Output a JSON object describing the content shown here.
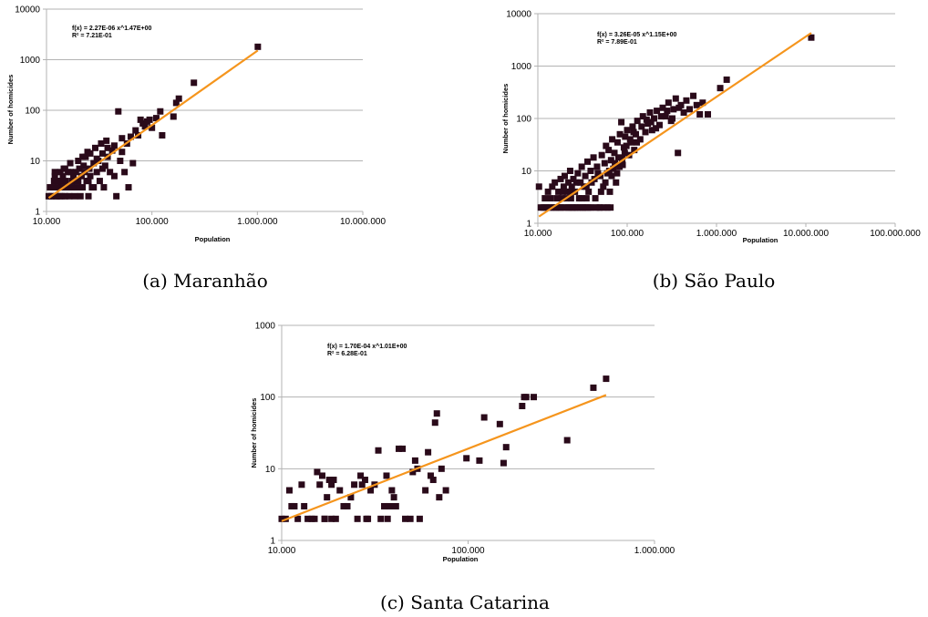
{
  "colors": {
    "marker": "#2a0a1a",
    "fit_line": "#f5951d",
    "grid": "#b3b3b3",
    "axis": "#b3b3b3"
  },
  "chart_data": [
    {
      "type": "scatter",
      "log_x": true,
      "log_y": true,
      "xlabel": "Population",
      "ylabel": "Number of homicides",
      "xlim": [
        10000,
        10000000
      ],
      "ylim": [
        1,
        10000
      ],
      "x_ticks": [
        "10.000",
        "100.000",
        "1.000.000",
        "10.000.000"
      ],
      "y_ticks": [
        "1",
        "10",
        "100",
        "1000",
        "10000"
      ],
      "grid": "horizontal",
      "equation": "f(x) = 2.27E-06 x^1.47E+00",
      "r2": "R² = 7.21E-01",
      "fit": {
        "a": 2.27e-06,
        "b": 1.47,
        "x_range": [
          10500,
          1010000
        ]
      },
      "caption": "(a)  Maranhão",
      "points": [
        [
          10500,
          2
        ],
        [
          10800,
          3
        ],
        [
          11000,
          2
        ],
        [
          11200,
          2
        ],
        [
          11500,
          3
        ],
        [
          11800,
          4
        ],
        [
          12000,
          5
        ],
        [
          12300,
          2
        ],
        [
          12500,
          2
        ],
        [
          12800,
          3
        ],
        [
          13000,
          4
        ],
        [
          13300,
          2
        ],
        [
          13500,
          6
        ],
        [
          13800,
          3
        ],
        [
          14000,
          2
        ],
        [
          14300,
          5
        ],
        [
          14600,
          7
        ],
        [
          15000,
          2
        ],
        [
          15300,
          4
        ],
        [
          15600,
          3
        ],
        [
          16000,
          6
        ],
        [
          16400,
          2
        ],
        [
          16800,
          9
        ],
        [
          17200,
          3
        ],
        [
          17600,
          4
        ],
        [
          18000,
          5
        ],
        [
          18500,
          2
        ],
        [
          19000,
          6
        ],
        [
          19500,
          3
        ],
        [
          20000,
          4
        ],
        [
          20500,
          7
        ],
        [
          21000,
          2
        ],
        [
          21500,
          5
        ],
        [
          22000,
          3
        ],
        [
          22500,
          8
        ],
        [
          23000,
          6
        ],
        [
          23500,
          12
        ],
        [
          24000,
          4
        ],
        [
          24500,
          15
        ],
        [
          25000,
          2
        ],
        [
          25500,
          7
        ],
        [
          26000,
          5
        ],
        [
          27000,
          3
        ],
        [
          28000,
          9
        ],
        [
          29000,
          18
        ],
        [
          30000,
          6
        ],
        [
          31000,
          10
        ],
        [
          32000,
          4
        ],
        [
          33000,
          22
        ],
        [
          34000,
          14
        ],
        [
          35000,
          3
        ],
        [
          36000,
          8
        ],
        [
          37000,
          25
        ],
        [
          38000,
          12
        ],
        [
          40000,
          6
        ],
        [
          42000,
          16
        ],
        [
          44000,
          20
        ],
        [
          46000,
          2
        ],
        [
          48000,
          95
        ],
        [
          50000,
          10
        ],
        [
          52000,
          28
        ],
        [
          55000,
          6
        ],
        [
          58000,
          22
        ],
        [
          60000,
          3
        ],
        [
          63000,
          30
        ],
        [
          66000,
          9
        ],
        [
          70000,
          40
        ],
        [
          74000,
          32
        ],
        [
          78000,
          65
        ],
        [
          82000,
          55
        ],
        [
          86000,
          48
        ],
        [
          90000,
          60
        ],
        [
          95000,
          65
        ],
        [
          100000,
          45
        ],
        [
          110000,
          70
        ],
        [
          120000,
          95
        ],
        [
          125000,
          32
        ],
        [
          160000,
          75
        ],
        [
          170000,
          140
        ],
        [
          180000,
          170
        ],
        [
          250000,
          350
        ],
        [
          1010000,
          1800
        ],
        [
          12000,
          6
        ],
        [
          13500,
          4
        ],
        [
          15000,
          7
        ],
        [
          17000,
          6
        ],
        [
          20000,
          10
        ],
        [
          22000,
          12
        ],
        [
          26000,
          14
        ],
        [
          30000,
          11
        ],
        [
          34000,
          7
        ],
        [
          28000,
          3
        ],
        [
          25000,
          4
        ],
        [
          38000,
          18
        ],
        [
          44000,
          5
        ],
        [
          52000,
          15
        ]
      ]
    },
    {
      "type": "scatter",
      "log_x": true,
      "log_y": true,
      "xlabel": "Population",
      "ylabel": "Number of homicides",
      "xlim": [
        10000,
        100000000
      ],
      "ylim": [
        1,
        10000
      ],
      "x_ticks": [
        "10.000",
        "100.000",
        "1.000.000",
        "10.000.000",
        "100.000.000"
      ],
      "y_ticks": [
        "1",
        "10",
        "100",
        "1000",
        "10000"
      ],
      "grid": "horizontal",
      "equation": "f(x) = 3.26E-05 x^1.15E+00",
      "r2": "R² = 7.89E-01",
      "fit": {
        "a": 3.26e-05,
        "b": 1.15,
        "x_range": [
          10300,
          11500000
        ]
      },
      "caption": "(b)  São Paulo",
      "points": [
        [
          10300,
          5
        ],
        [
          10800,
          2
        ],
        [
          11500,
          2
        ],
        [
          12000,
          3
        ],
        [
          12500,
          2
        ],
        [
          13000,
          4
        ],
        [
          13500,
          2
        ],
        [
          14000,
          3
        ],
        [
          14500,
          5
        ],
        [
          15000,
          2
        ],
        [
          15500,
          6
        ],
        [
          16000,
          2
        ],
        [
          16500,
          3
        ],
        [
          17000,
          4
        ],
        [
          17500,
          2
        ],
        [
          18000,
          7
        ],
        [
          18500,
          3
        ],
        [
          19000,
          2
        ],
        [
          19500,
          5
        ],
        [
          20000,
          8
        ],
        [
          20500,
          2
        ],
        [
          21000,
          3
        ],
        [
          21500,
          4
        ],
        [
          22000,
          6
        ],
        [
          22500,
          2
        ],
        [
          23000,
          10
        ],
        [
          23500,
          3
        ],
        [
          24000,
          5
        ],
        [
          24500,
          2
        ],
        [
          25000,
          7
        ],
        [
          26000,
          4
        ],
        [
          27000,
          2
        ],
        [
          28000,
          9
        ],
        [
          29000,
          3
        ],
        [
          30000,
          6
        ],
        [
          31000,
          12
        ],
        [
          32000,
          2
        ],
        [
          33000,
          5
        ],
        [
          34000,
          8
        ],
        [
          35000,
          3
        ],
        [
          36000,
          15
        ],
        [
          37000,
          4
        ],
        [
          38000,
          2
        ],
        [
          39000,
          10
        ],
        [
          40000,
          6
        ],
        [
          42000,
          18
        ],
        [
          44000,
          3
        ],
        [
          46000,
          12
        ],
        [
          48000,
          2
        ],
        [
          50000,
          8
        ],
        [
          52000,
          20
        ],
        [
          54000,
          5
        ],
        [
          56000,
          14
        ],
        [
          58000,
          30
        ],
        [
          60000,
          9
        ],
        [
          62000,
          25
        ],
        [
          64000,
          4
        ],
        [
          66000,
          16
        ],
        [
          68000,
          40
        ],
        [
          70000,
          11
        ],
        [
          72000,
          22
        ],
        [
          75000,
          6
        ],
        [
          78000,
          35
        ],
        [
          80000,
          18
        ],
        [
          83000,
          50
        ],
        [
          86000,
          85
        ],
        [
          89000,
          13
        ],
        [
          92000,
          28
        ],
        [
          95000,
          45
        ],
        [
          100000,
          60
        ],
        [
          105000,
          20
        ],
        [
          110000,
          35
        ],
        [
          115000,
          70
        ],
        [
          120000,
          25
        ],
        [
          125000,
          50
        ],
        [
          130000,
          90
        ],
        [
          140000,
          40
        ],
        [
          150000,
          110
        ],
        [
          160000,
          55
        ],
        [
          170000,
          80
        ],
        [
          180000,
          130
        ],
        [
          190000,
          60
        ],
        [
          200000,
          100
        ],
        [
          215000,
          140
        ],
        [
          230000,
          75
        ],
        [
          250000,
          160
        ],
        [
          270000,
          110
        ],
        [
          290000,
          200
        ],
        [
          310000,
          90
        ],
        [
          330000,
          150
        ],
        [
          350000,
          240
        ],
        [
          370000,
          22
        ],
        [
          400000,
          180
        ],
        [
          430000,
          130
        ],
        [
          460000,
          220
        ],
        [
          500000,
          150
        ],
        [
          550000,
          270
        ],
        [
          600000,
          180
        ],
        [
          650000,
          120
        ],
        [
          700000,
          200
        ],
        [
          800000,
          120
        ],
        [
          1100000,
          380
        ],
        [
          1300000,
          550
        ],
        [
          11500000,
          3500
        ],
        [
          12000,
          2
        ],
        [
          14000,
          2
        ],
        [
          16000,
          2
        ],
        [
          18000,
          2
        ],
        [
          22000,
          2
        ],
        [
          24000,
          2
        ],
        [
          26000,
          2
        ],
        [
          28000,
          2
        ],
        [
          30000,
          2
        ],
        [
          32000,
          2
        ],
        [
          34000,
          2
        ],
        [
          36000,
          2
        ],
        [
          40000,
          2
        ],
        [
          45000,
          2
        ],
        [
          50000,
          2
        ],
        [
          55000,
          2
        ],
        [
          60000,
          2
        ],
        [
          65000,
          2
        ],
        [
          19000,
          4
        ],
        [
          23000,
          4
        ],
        [
          27000,
          6
        ],
        [
          31000,
          3
        ],
        [
          35000,
          5
        ],
        [
          43000,
          7
        ],
        [
          47000,
          9
        ],
        [
          51000,
          4
        ],
        [
          57000,
          6
        ],
        [
          63000,
          10
        ],
        [
          67000,
          8
        ],
        [
          73000,
          14
        ],
        [
          77000,
          9
        ],
        [
          82000,
          12
        ],
        [
          88000,
          17
        ],
        [
          94000,
          22
        ],
        [
          98000,
          30
        ],
        [
          108000,
          40
        ],
        [
          118000,
          55
        ],
        [
          128000,
          35
        ],
        [
          145000,
          70
        ],
        [
          165000,
          95
        ],
        [
          185000,
          85
        ],
        [
          210000,
          65
        ],
        [
          240000,
          110
        ],
        [
          280000,
          140
        ],
        [
          320000,
          100
        ],
        [
          380000,
          160
        ]
      ]
    },
    {
      "type": "scatter",
      "log_x": true,
      "log_y": true,
      "xlabel": "Population",
      "ylabel": "Number of homicides",
      "xlim": [
        10000,
        1000000
      ],
      "ylim": [
        1,
        1000
      ],
      "x_ticks": [
        "10.000",
        "100.000",
        "1.000.000"
      ],
      "y_ticks": [
        "1",
        "10",
        "100",
        "1000"
      ],
      "grid": "horizontal",
      "equation": "f(x) = 1.70E-04 x^1.01E+00",
      "r2": "R² = 6.28E-01",
      "fit": {
        "a": 0.00017,
        "b": 1.01,
        "x_range": [
          10000,
          550000
        ]
      },
      "caption": "(c)  Santa Catarina",
      "points": [
        [
          10000,
          2
        ],
        [
          10500,
          2
        ],
        [
          11000,
          5
        ],
        [
          11300,
          3
        ],
        [
          11700,
          3
        ],
        [
          12200,
          2
        ],
        [
          12800,
          6
        ],
        [
          13200,
          3
        ],
        [
          13800,
          2
        ],
        [
          14500,
          2
        ],
        [
          15000,
          2
        ],
        [
          15500,
          9
        ],
        [
          16000,
          6
        ],
        [
          16500,
          8
        ],
        [
          17000,
          2
        ],
        [
          17500,
          4
        ],
        [
          18000,
          7
        ],
        [
          18500,
          6
        ],
        [
          19000,
          7
        ],
        [
          19500,
          2
        ],
        [
          20500,
          5
        ],
        [
          21500,
          3
        ],
        [
          22500,
          3
        ],
        [
          23500,
          4
        ],
        [
          24500,
          6
        ],
        [
          25500,
          2
        ],
        [
          26500,
          8
        ],
        [
          27000,
          6
        ],
        [
          28000,
          7
        ],
        [
          29000,
          2
        ],
        [
          30000,
          5
        ],
        [
          31500,
          6
        ],
        [
          33000,
          18
        ],
        [
          34000,
          2
        ],
        [
          35500,
          3
        ],
        [
          36500,
          8
        ],
        [
          38000,
          3
        ],
        [
          39000,
          5
        ],
        [
          40000,
          4
        ],
        [
          41000,
          3
        ],
        [
          42500,
          19
        ],
        [
          44500,
          19
        ],
        [
          46000,
          2
        ],
        [
          49000,
          2
        ],
        [
          50500,
          9
        ],
        [
          52000,
          13
        ],
        [
          53500,
          10
        ],
        [
          55000,
          2
        ],
        [
          59000,
          5
        ],
        [
          61000,
          17
        ],
        [
          63000,
          8
        ],
        [
          65000,
          7
        ],
        [
          66500,
          44
        ],
        [
          68000,
          59
        ],
        [
          70000,
          4
        ],
        [
          72000,
          10
        ],
        [
          76000,
          5
        ],
        [
          98000,
          14
        ],
        [
          115000,
          13
        ],
        [
          122000,
          52
        ],
        [
          148000,
          42
        ],
        [
          155000,
          12
        ],
        [
          160000,
          20
        ],
        [
          195000,
          75
        ],
        [
          200000,
          100
        ],
        [
          205000,
          100
        ],
        [
          225000,
          100
        ],
        [
          340000,
          25
        ],
        [
          470000,
          135
        ],
        [
          550000,
          180
        ],
        [
          17000,
          2
        ],
        [
          18500,
          2
        ],
        [
          28500,
          2
        ],
        [
          37000,
          2
        ]
      ]
    }
  ]
}
